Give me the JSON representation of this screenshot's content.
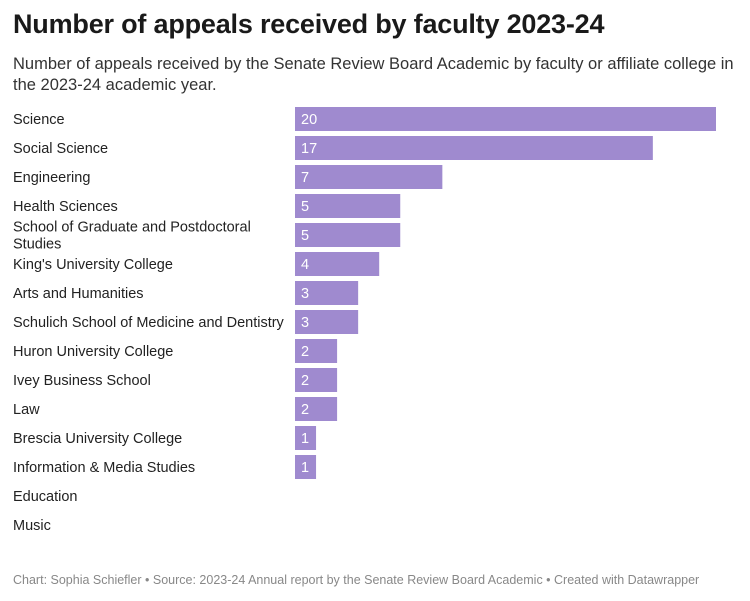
{
  "title": "Number of appeals received by faculty 2023-24",
  "subtitle": "Number of appeals received by the Senate Review Board Academic by faculty or affiliate college in the 2023-24 academic year.",
  "footer": "Chart: Sophia Schiefler • Source: 2023-24 Annual report by the Senate Review Board Academic • Created with Datawrapper",
  "chart_data": {
    "type": "bar",
    "orientation": "horizontal",
    "bar_color": "#9f8acf",
    "value_label_color": "#ffffff",
    "categories": [
      "Science",
      "Social Science",
      "Engineering",
      "Health Sciences",
      [
        "School of Graduate and Postdoctoral",
        "Studies"
      ],
      "King's University College",
      "Arts and Humanities",
      "Schulich School of Medicine and Dentistry",
      "Huron University College",
      "Ivey Business School",
      "Law",
      "Brescia University College",
      "Information & Media Studies",
      "Education",
      "Music"
    ],
    "values": [
      20,
      17,
      7,
      5,
      5,
      4,
      3,
      3,
      2,
      2,
      2,
      1,
      1,
      0,
      0
    ],
    "xlim": [
      0,
      20
    ],
    "grid": false
  }
}
